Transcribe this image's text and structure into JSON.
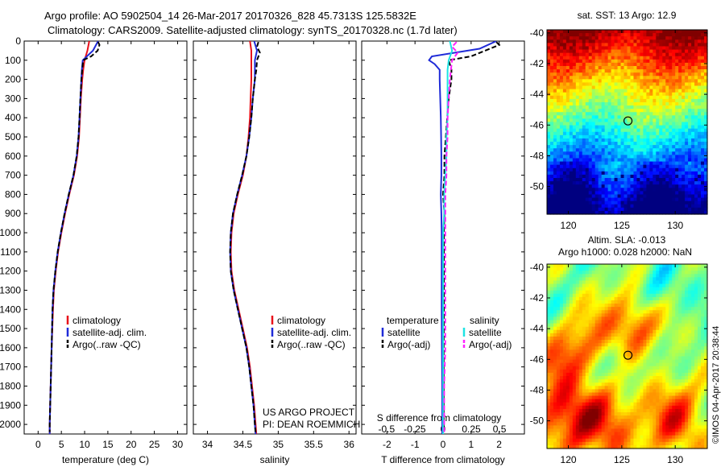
{
  "header": {
    "line1": "Argo profile: AO 5902504_14 26-Mar-2017 20170326_828 45.7313S 125.5832E",
    "line2": "Climatology: CARS2009. Satellite-adjusted climatology: synTS_20170328.nc (1.7d later)"
  },
  "chart_data": [
    {
      "type": "line",
      "id": "temperature",
      "xlabel": "temperature (deg C)",
      "ylabel": "",
      "xlim": [
        -3,
        32
      ],
      "ylim": [
        2050,
        0
      ],
      "xticks": [
        0,
        5,
        10,
        15,
        20,
        25,
        30
      ],
      "yticks": [
        0,
        100,
        200,
        300,
        400,
        500,
        600,
        700,
        800,
        900,
        1000,
        1100,
        1200,
        1300,
        1400,
        1500,
        1600,
        1700,
        1800,
        1900,
        2000
      ],
      "legend": [
        "climatology",
        "satellite-adj. clim.",
        "Argo(..raw -QC)"
      ],
      "series": [
        {
          "name": "climatology",
          "color": "#e8111b",
          "style": "solid",
          "depth": [
            0,
            50,
            100,
            150,
            200,
            300,
            400,
            500,
            600,
            700,
            800,
            900,
            1000,
            1100,
            1200,
            1300,
            1400,
            1600,
            1800,
            2000,
            2050
          ],
          "values": [
            11.0,
            10.6,
            10.0,
            9.7,
            9.5,
            9.2,
            9.0,
            8.8,
            8.4,
            7.7,
            6.7,
            5.8,
            5.0,
            4.3,
            3.8,
            3.4,
            3.2,
            2.9,
            2.7,
            2.5,
            2.5
          ]
        },
        {
          "name": "satellite-adj. clim.",
          "color": "#1f2bd8",
          "style": "solid",
          "depth": [
            0,
            50,
            100,
            150,
            200,
            300,
            400,
            500,
            600,
            700,
            800,
            900,
            1000,
            1100,
            1200,
            1300,
            1400,
            1600,
            1800,
            2000,
            2050
          ],
          "values": [
            12.9,
            11.8,
            9.6,
            9.4,
            9.3,
            9.1,
            8.9,
            8.7,
            8.3,
            7.6,
            6.6,
            5.7,
            4.9,
            4.2,
            3.7,
            3.3,
            3.1,
            2.9,
            2.7,
            2.5,
            2.5
          ]
        },
        {
          "name": "Argo(..raw -QC)",
          "color": "#000000",
          "style": "dashed",
          "depth": [
            5,
            20,
            50,
            80,
            100,
            150,
            200,
            300,
            400,
            500,
            600,
            700,
            800,
            900,
            1000,
            1100,
            1200,
            1300,
            1400,
            1600,
            1800,
            2000,
            2040
          ],
          "values": [
            12.9,
            13.2,
            12.8,
            11.4,
            9.7,
            9.5,
            9.3,
            9.1,
            8.9,
            8.7,
            8.3,
            7.6,
            6.6,
            5.7,
            4.9,
            4.2,
            3.7,
            3.3,
            3.1,
            2.9,
            2.7,
            2.5,
            2.5
          ]
        }
      ]
    },
    {
      "type": "line",
      "id": "salinity",
      "xlabel": "salinity",
      "xlim": [
        33.8,
        36.1
      ],
      "ylim": [
        2050,
        0
      ],
      "xticks": [
        34,
        34.5,
        35,
        35.5,
        36
      ],
      "legend": [
        "climatology",
        "satellite-adj. clim.",
        "Argo(..raw -QC)"
      ],
      "series": [
        {
          "name": "climatology",
          "color": "#e8111b",
          "style": "solid",
          "depth": [
            0,
            50,
            100,
            150,
            200,
            300,
            400,
            500,
            600,
            700,
            800,
            900,
            1000,
            1100,
            1200,
            1300,
            1400,
            1500,
            1600,
            1700,
            1800,
            1900,
            2000,
            2050
          ],
          "values": [
            34.6,
            34.62,
            34.62,
            34.62,
            34.62,
            34.61,
            34.6,
            34.58,
            34.55,
            34.5,
            34.43,
            34.37,
            34.34,
            34.33,
            34.34,
            34.38,
            34.44,
            34.5,
            34.56,
            34.6,
            34.63,
            34.66,
            34.68,
            34.69
          ]
        },
        {
          "name": "satellite-adj. clim.",
          "color": "#1f2bd8",
          "style": "solid",
          "depth": [
            0,
            50,
            100,
            150,
            200,
            300,
            400,
            500,
            600,
            700,
            800,
            900,
            1000,
            1100,
            1200,
            1300,
            1400,
            1500,
            1600,
            1700,
            1800,
            1900,
            2000,
            2050
          ],
          "values": [
            34.66,
            34.7,
            34.67,
            34.67,
            34.67,
            34.64,
            34.62,
            34.59,
            34.55,
            34.49,
            34.42,
            34.36,
            34.33,
            34.32,
            34.33,
            34.37,
            34.43,
            34.49,
            34.55,
            34.59,
            34.62,
            34.65,
            34.67,
            34.68
          ]
        },
        {
          "name": "Argo(..raw -QC)",
          "color": "#000000",
          "style": "dashed",
          "depth": [
            5,
            30,
            60,
            100,
            150,
            200,
            300,
            400,
            500,
            600,
            700,
            800,
            900,
            1000,
            1100,
            1200,
            1300,
            1400,
            1500,
            1600,
            1700,
            1800,
            1900,
            2000,
            2040
          ],
          "values": [
            34.72,
            34.7,
            34.74,
            34.7,
            34.69,
            34.67,
            34.64,
            34.62,
            34.59,
            34.55,
            34.49,
            34.42,
            34.36,
            34.33,
            34.32,
            34.33,
            34.37,
            34.43,
            34.49,
            34.55,
            34.59,
            34.62,
            34.65,
            34.67,
            34.68
          ]
        }
      ]
    },
    {
      "type": "line",
      "id": "difference",
      "xlabel": "T difference from climatology",
      "top_axis_label": "S difference from climatology",
      "xlim": [
        -2.9,
        2.9
      ],
      "ylim": [
        2050,
        0
      ],
      "xticks": [
        -2,
        -1,
        0,
        1,
        2
      ],
      "top_ticks": [
        -0.5,
        -0.25,
        0,
        0.25,
        0.5
      ],
      "legend_temperature": "temperature",
      "legend_salinity": "salinity",
      "legend": [
        "satellite",
        "Argo(-adj)",
        "satellite",
        "Argo(-adj)"
      ],
      "series": [
        {
          "name": "temperature satellite",
          "color": "#1f2bd8",
          "style": "solid",
          "depth": [
            0,
            40,
            80,
            100,
            120,
            150,
            200,
            300,
            400,
            500,
            600,
            700,
            800,
            900,
            1000,
            1200,
            1400,
            1600,
            1800,
            2000,
            2050
          ],
          "values": [
            1.9,
            1.3,
            -0.4,
            -0.5,
            -0.3,
            -0.12,
            -0.12,
            -0.1,
            -0.08,
            -0.07,
            -0.06,
            -0.06,
            -0.08,
            -0.06,
            -0.05,
            -0.05,
            -0.05,
            -0.04,
            -0.03,
            -0.03,
            -0.03
          ]
        },
        {
          "name": "temperature Argo(-adj)",
          "color": "#000000",
          "style": "dashed",
          "depth": [
            5,
            20,
            50,
            80,
            100,
            150,
            200,
            300,
            400,
            500,
            600,
            700,
            800,
            900,
            1000,
            1200,
            1400,
            1600,
            1800,
            2000,
            2040
          ],
          "values": [
            1.9,
            2.0,
            1.5,
            1.0,
            0.2,
            0.3,
            0.3,
            0.2,
            0.15,
            0.1,
            0.05,
            0.05,
            0.0,
            0.05,
            0.03,
            0.03,
            0.03,
            0.02,
            0.02,
            0.02,
            0.02
          ]
        },
        {
          "name": "salinity satellite",
          "color": "#1ee3e3",
          "style": "solid",
          "depth": [
            0,
            50,
            100,
            150,
            200,
            300,
            400,
            500,
            600,
            700,
            800,
            900,
            1000,
            1200,
            1400,
            1600,
            1800,
            2000,
            2050
          ],
          "values": [
            0.06,
            0.08,
            0.05,
            0.04,
            0.04,
            0.04,
            0.04,
            0.03,
            0.03,
            0.02,
            0.01,
            0.01,
            0.0,
            0.0,
            0.0,
            0.0,
            0.0,
            0.0,
            0.0
          ]
        },
        {
          "name": "salinity Argo(-adj)",
          "color": "#ff22ff",
          "style": "dashed",
          "depth": [
            5,
            30,
            60,
            100,
            150,
            200,
            300,
            400,
            500,
            600,
            700,
            800,
            900,
            1000,
            1200,
            1400,
            1600,
            1800,
            2000,
            2040
          ],
          "values": [
            0.12,
            0.08,
            0.13,
            0.08,
            0.07,
            0.06,
            0.05,
            0.04,
            0.04,
            0.03,
            0.03,
            0.02,
            0.02,
            0.02,
            0.02,
            0.02,
            0.02,
            0.01,
            0.01,
            0.01
          ]
        }
      ]
    },
    {
      "type": "heatmap",
      "id": "sst-map",
      "title": "sat. SST: 13 Argo: 12.9",
      "xlim": [
        118,
        133
      ],
      "ylim": [
        -51.8,
        -39.8
      ],
      "xticks": [
        120,
        125,
        130
      ],
      "yticks": [
        -40,
        -42,
        -44,
        -46,
        -48,
        -50
      ],
      "marker": {
        "lon": 125.58,
        "lat": -45.73
      }
    },
    {
      "type": "heatmap",
      "id": "sla-map",
      "title": "Altim. SLA: -0.013",
      "subtitle": "Argo h1000: 0.028 h2000: NaN",
      "xlim": [
        118,
        133
      ],
      "ylim": [
        -51.8,
        -39.8
      ],
      "xticks": [
        120,
        125,
        130
      ],
      "yticks": [
        -40,
        -42,
        -44,
        -46,
        -48,
        -50
      ],
      "marker": {
        "lon": 125.58,
        "lat": -45.73
      }
    }
  ],
  "credits": {
    "project": "US ARGO PROJECT",
    "pi": "PI: DEAN ROEMMICH",
    "imos": "©IMOS 04-Apr-2017 20:38:44"
  }
}
